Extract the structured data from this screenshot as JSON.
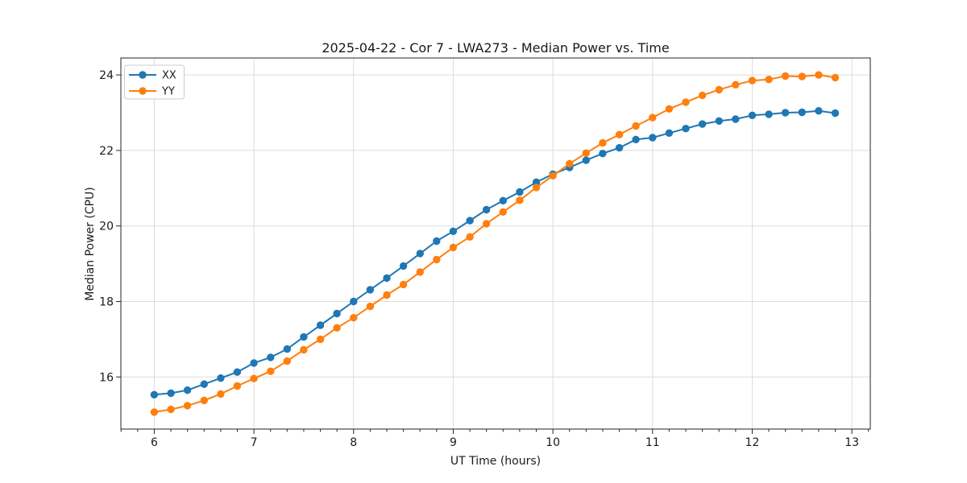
{
  "chart_data": {
    "type": "line",
    "title": "2025-04-22 - Cor 7 - LWA273 - Median Power vs. Time",
    "xlabel": "UT Time (hours)",
    "ylabel": "Median Power (CPU)",
    "xlim": [
      5.665,
      13.185
    ],
    "ylim": [
      14.62,
      24.45
    ],
    "xticks": [
      6,
      7,
      8,
      9,
      10,
      11,
      12,
      13
    ],
    "yticks": [
      16,
      18,
      20,
      22,
      24
    ],
    "x_minor_step": 0.1667,
    "grid": true,
    "grid_color": "#dcdcdc",
    "spine_color": "#262626",
    "legend_position": "upper-left",
    "x": [
      6.0,
      6.167,
      6.333,
      6.5,
      6.667,
      6.833,
      7.0,
      7.167,
      7.333,
      7.5,
      7.667,
      7.833,
      8.0,
      8.167,
      8.333,
      8.5,
      8.667,
      8.833,
      9.0,
      9.167,
      9.333,
      9.5,
      9.667,
      9.833,
      10.0,
      10.167,
      10.333,
      10.5,
      10.667,
      10.833,
      11.0,
      11.167,
      11.333,
      11.5,
      11.667,
      11.833,
      12.0,
      12.167,
      12.333,
      12.5,
      12.667,
      12.833
    ],
    "series": [
      {
        "name": "XX",
        "color": "#1f77b4",
        "values": [
          15.53,
          15.57,
          15.65,
          15.81,
          15.97,
          16.13,
          16.37,
          16.52,
          16.74,
          17.06,
          17.37,
          17.68,
          18.0,
          18.31,
          18.62,
          18.94,
          19.27,
          19.6,
          19.86,
          20.14,
          20.43,
          20.67,
          20.9,
          21.16,
          21.37,
          21.55,
          21.74,
          21.92,
          22.07,
          22.29,
          22.34,
          22.46,
          22.58,
          22.7,
          22.78,
          22.83,
          22.93,
          22.96,
          23.0,
          23.01,
          23.05,
          22.99
        ]
      },
      {
        "name": "YY",
        "color": "#ff7f0e",
        "values": [
          15.07,
          15.14,
          15.24,
          15.38,
          15.55,
          15.76,
          15.96,
          16.15,
          16.42,
          16.72,
          17.0,
          17.3,
          17.57,
          17.87,
          18.17,
          18.45,
          18.78,
          19.11,
          19.43,
          19.71,
          20.06,
          20.37,
          20.68,
          21.02,
          21.33,
          21.65,
          21.93,
          22.2,
          22.42,
          22.65,
          22.87,
          23.1,
          23.28,
          23.46,
          23.61,
          23.74,
          23.85,
          23.88,
          23.97,
          23.96,
          24.0,
          23.93
        ]
      }
    ]
  }
}
